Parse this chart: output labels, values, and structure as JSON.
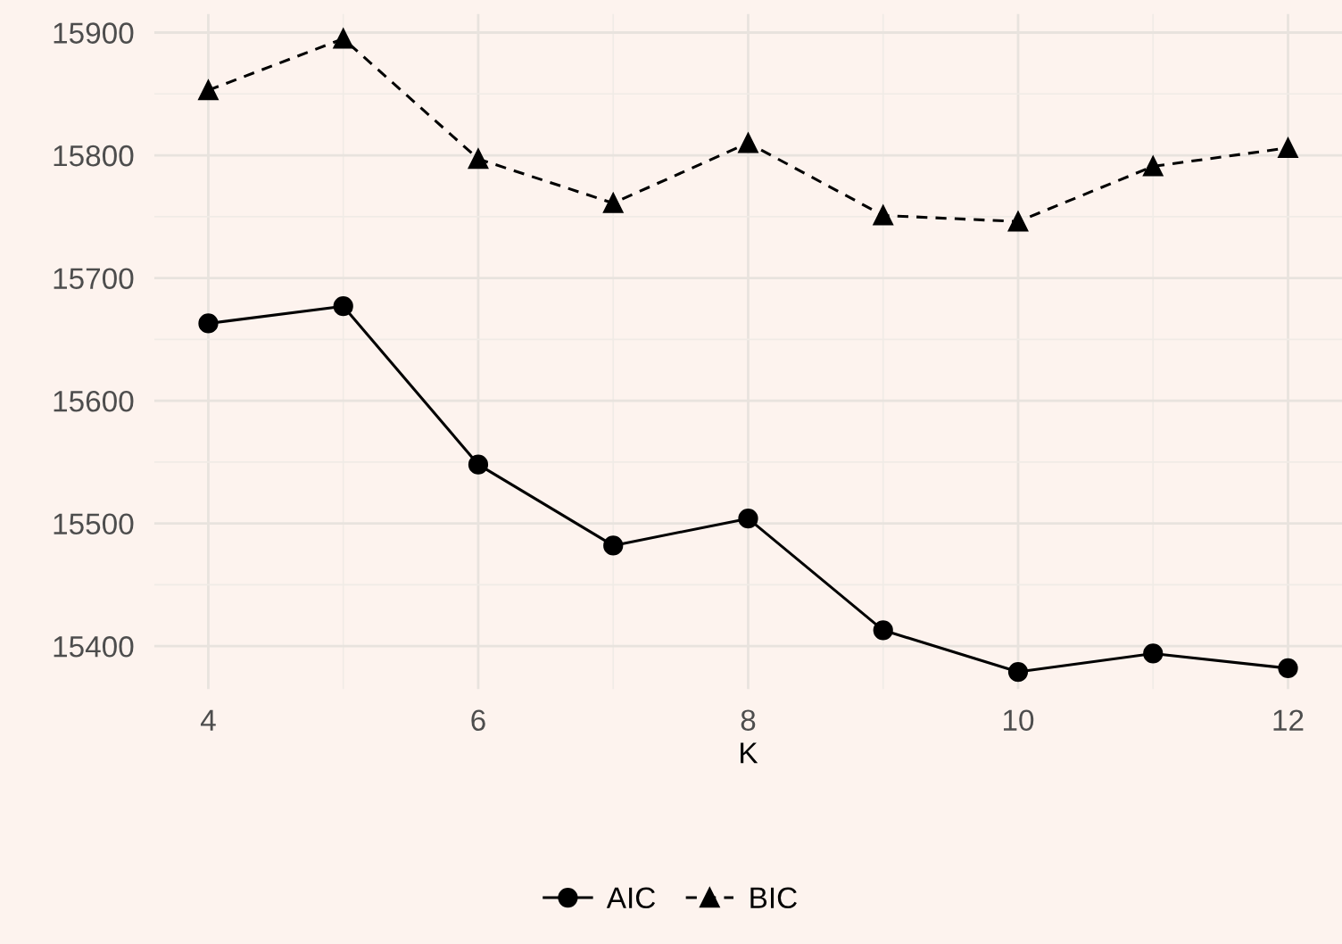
{
  "chart_data": {
    "type": "line",
    "xlabel": "K",
    "x": [
      4,
      5,
      6,
      7,
      8,
      9,
      10,
      11,
      12
    ],
    "series": [
      {
        "name": "AIC",
        "color": "#000000",
        "marker": "circle",
        "line_style": "solid",
        "values": [
          15663,
          15677,
          15548,
          15482,
          15504,
          15413,
          15379,
          15394,
          15382
        ]
      },
      {
        "name": "BIC",
        "color": "#000000",
        "marker": "triangle",
        "line_style": "dashed",
        "values": [
          15853,
          15895,
          15797,
          15761,
          15810,
          15751,
          15746,
          15791,
          15806
        ]
      }
    ],
    "xlim": [
      3.6,
      12.4
    ],
    "xticks": [
      4,
      6,
      8,
      10,
      12
    ],
    "ylim": [
      15365,
      15915
    ],
    "yticks": [
      15400,
      15500,
      15600,
      15700,
      15800,
      15900
    ],
    "grid": true,
    "legend": "bottom"
  }
}
